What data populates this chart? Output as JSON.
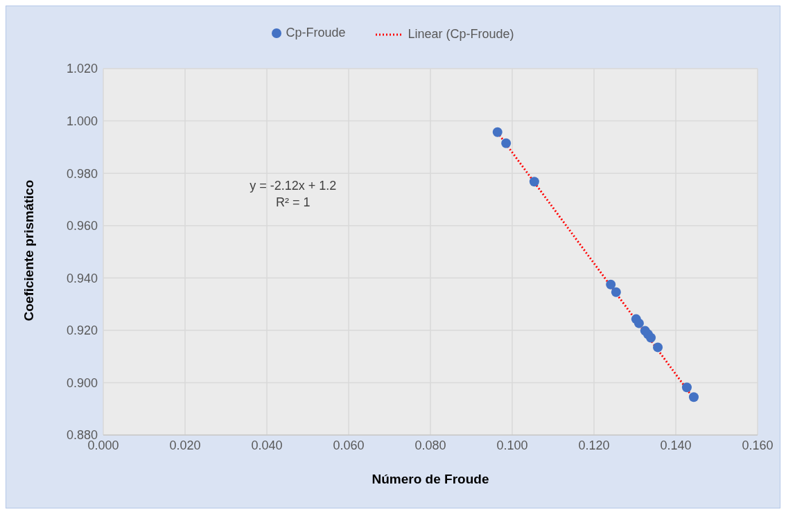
{
  "chart_data": {
    "type": "scatter",
    "xlabel": "Número de Froude",
    "ylabel": "Coeficiente prismático",
    "xlim": [
      0,
      0.16
    ],
    "xticks": [
      {
        "value": 0,
        "label": "0.000"
      },
      {
        "value": 0.02,
        "label": "0.020"
      },
      {
        "value": 0.04,
        "label": "0.040"
      },
      {
        "value": 0.06,
        "label": "0.060"
      },
      {
        "value": 0.08,
        "label": "0.080"
      },
      {
        "value": 0.1,
        "label": "0.100"
      },
      {
        "value": 0.12,
        "label": "0.120"
      },
      {
        "value": 0.14,
        "label": "0.140"
      },
      {
        "value": 0.16,
        "label": "0.160"
      }
    ],
    "ylim": [
      0.88,
      1.02
    ],
    "yticks": [
      {
        "value": 0.88,
        "label": "0.880"
      },
      {
        "value": 0.9,
        "label": "0.900"
      },
      {
        "value": 0.92,
        "label": "0.920"
      },
      {
        "value": 0.94,
        "label": "0.940"
      },
      {
        "value": 0.96,
        "label": "0.960"
      },
      {
        "value": 0.98,
        "label": "0.980"
      },
      {
        "value": 1,
        "label": "1.000"
      },
      {
        "value": 1.02,
        "label": "1.020"
      }
    ],
    "grid": true,
    "legend": "top",
    "series": [
      {
        "name": "Cp-Froude",
        "marker": "circle",
        "color": "#4472c4",
        "x": [
          0.0964,
          0.0985,
          0.1054,
          0.1241,
          0.1254,
          0.1303,
          0.131,
          0.1325,
          0.1332,
          0.1339,
          0.1356,
          0.1427,
          0.1444
        ],
        "values": [
          0.9957,
          0.9915,
          0.9768,
          0.9375,
          0.9346,
          0.9243,
          0.9227,
          0.9198,
          0.9185,
          0.9172,
          0.9135,
          0.8982,
          0.8945
        ]
      },
      {
        "name": "Linear (Cp-Froude)",
        "type": "line",
        "marker": "none",
        "color": "#ff0000",
        "line_style": "dotted",
        "x": [
          0.0964,
          0.1444
        ],
        "values": [
          0.9956,
          0.8939
        ]
      }
    ],
    "annotations": [
      "y = -2.12x + 1.2",
      "R² = 1"
    ]
  }
}
